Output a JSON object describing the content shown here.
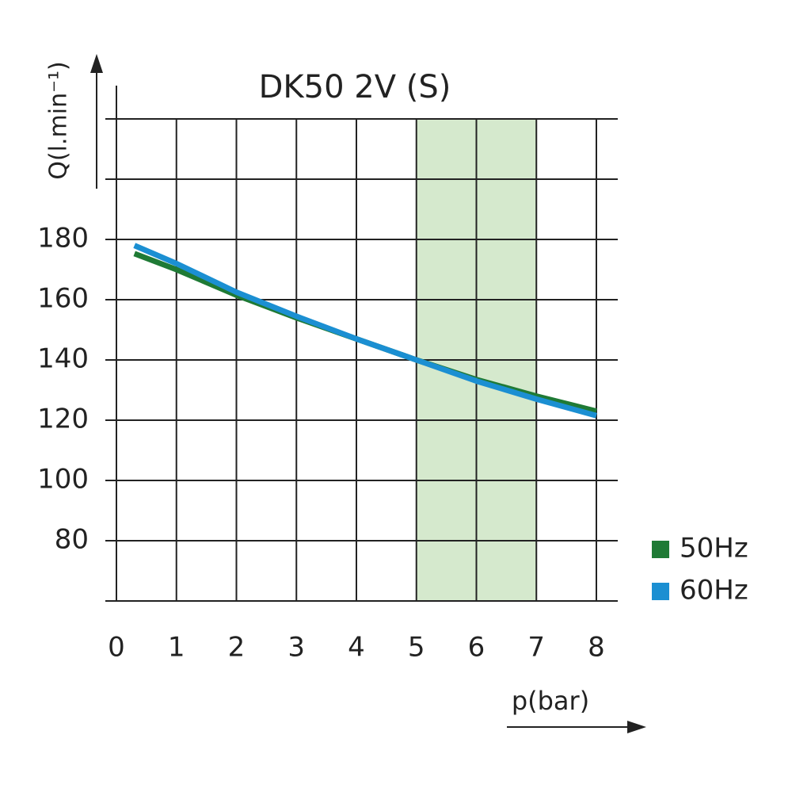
{
  "chart_data": {
    "type": "line",
    "title": "DK50 2V (S)",
    "x_label": "p(bar)",
    "y_label": "Q(l.min⁻¹)",
    "x": [
      0.3,
      1,
      2,
      3,
      4,
      5,
      6,
      7,
      8
    ],
    "series": [
      {
        "name": "50Hz",
        "color": "#1f7a35",
        "values": [
          175.3,
          170,
          161.5,
          154,
          147,
          140,
          133.5,
          128,
          123
        ]
      },
      {
        "name": "60Hz",
        "color": "#1b8fd2",
        "values": [
          178,
          172,
          162.5,
          154.5,
          147,
          140,
          133,
          127,
          121.5
        ]
      }
    ],
    "xlim": [
      0,
      8
    ],
    "xticks": [
      0,
      1,
      2,
      3,
      4,
      5,
      6,
      7,
      8
    ],
    "ylim": [
      60,
      220
    ],
    "yticks": [
      80,
      100,
      120,
      140,
      160,
      180
    ],
    "ygrid": [
      60,
      80,
      100,
      120,
      140,
      160,
      180,
      200,
      220
    ],
    "highlight_x": [
      5,
      7
    ],
    "highlight_color": "#d5e9cd",
    "grid": true,
    "legend": "right"
  }
}
